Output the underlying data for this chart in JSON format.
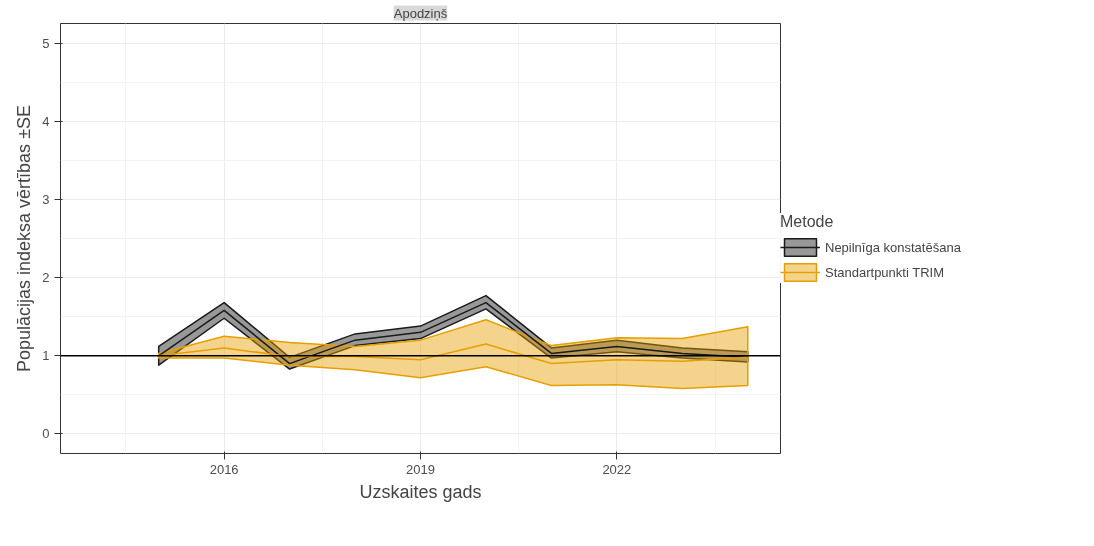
{
  "chart_data": {
    "type": "line",
    "title": "Apodziņš",
    "xlabel": "Uzskaites gads",
    "ylabel": "Populācijas indeksa vērtības ±SE",
    "legend_title": "Metode",
    "x": [
      2015,
      2016,
      2017,
      2018,
      2019,
      2020,
      2021,
      2022,
      2023,
      2024
    ],
    "series": [
      {
        "name": "Nepilnīga konstatēšana",
        "color": "#1a1a1a",
        "values": [
          1.0,
          1.58,
          0.9,
          1.2,
          1.3,
          1.68,
          1.03,
          1.12,
          1.03,
          0.98
        ],
        "lower": [
          0.88,
          1.48,
          0.83,
          1.13,
          1.22,
          1.6,
          0.97,
          1.05,
          0.97,
          0.92
        ],
        "upper": [
          1.12,
          1.68,
          0.98,
          1.28,
          1.38,
          1.77,
          1.1,
          1.2,
          1.1,
          1.05
        ]
      },
      {
        "name": "Standartpunkti TRIM",
        "color": "#e69f00",
        "values": [
          1.0,
          1.1,
          0.99,
          0.99,
          0.95,
          1.15,
          0.9,
          0.95,
          0.93,
          0.98
        ],
        "lower": [
          0.97,
          0.97,
          0.88,
          0.82,
          0.72,
          0.86,
          0.62,
          0.63,
          0.58,
          0.62
        ],
        "upper": [
          1.03,
          1.25,
          1.17,
          1.12,
          1.2,
          1.46,
          1.13,
          1.23,
          1.22,
          1.37
        ]
      }
    ],
    "ref_lines": [
      {
        "axis": "y",
        "value": 1,
        "color": "#000000"
      }
    ],
    "xlim": [
      2013.5,
      2024.5
    ],
    "xticks": [
      2016,
      2019,
      2022
    ],
    "ylim": [
      -0.25,
      5.25
    ],
    "yticks": [
      0,
      1,
      2,
      3,
      4,
      5
    ],
    "grid": true,
    "legend": "right"
  }
}
